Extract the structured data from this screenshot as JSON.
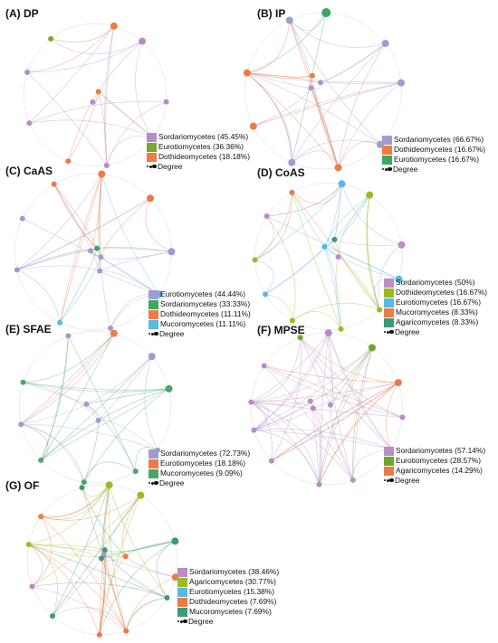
{
  "colors": {
    "Sordariomycetes": "#a08cc8",
    "Eurotiomycetes_A": "#7aa82a",
    "Eurotiomycetes": "#4aa86a",
    "Dothideomycetes": "#ee7b45",
    "Mucoromycetes": "#58b8e6",
    "Agaricomycetes": "#3c9a7a",
    "AgaricomycetesG": "#9cbc1c"
  },
  "degree_label": "Degree",
  "panels": [
    {
      "title": "(A) DP",
      "legend": [
        {
          "label": "Sordariomycetes (45.45%)",
          "color": "#b88cc8"
        },
        {
          "label": "Eurotiomycetes (36.36%)",
          "color": "#7aa82a"
        },
        {
          "label": "Dothideomycetes (18.18%)",
          "color": "#ee7b45"
        }
      ]
    },
    {
      "title": "(B) IP",
      "legend": [
        {
          "label": "Sordariomycetes (66.67%)",
          "color": "#a09cd0"
        },
        {
          "label": "Dothideomycetes (16.67%)",
          "color": "#ee7b45"
        },
        {
          "label": "Eurotiomycetes (16.67%)",
          "color": "#3aa860"
        }
      ]
    },
    {
      "title": "(C) CaAS",
      "legend": [
        {
          "label": "Eurotiomycetes (44.44%)",
          "color": "#a09cd0"
        },
        {
          "label": "Sordariomycetes (33.33%)",
          "color": "#3aa860"
        },
        {
          "label": "Dothideomycetes (11.11%)",
          "color": "#ee7b45"
        },
        {
          "label": "Mucoromycetes (11.11%)",
          "color": "#58b8e6"
        }
      ]
    },
    {
      "title": "(D) CoAS",
      "legend": [
        {
          "label": "Sordariomycetes (50%)",
          "color": "#c08cc8"
        },
        {
          "label": "Dothideomycetes (16.67%)",
          "color": "#9cbc1c"
        },
        {
          "label": "Eurotiomycetes (16.67%)",
          "color": "#58b8e6"
        },
        {
          "label": "Mucoromycetes (8.33%)",
          "color": "#ee7b45"
        },
        {
          "label": "Agaricomycetes (8.33%)",
          "color": "#3c9a7a"
        }
      ]
    },
    {
      "title": "(E) SFAE",
      "legend": [
        {
          "label": "Sordariomycetes (72.73%)",
          "color": "#a09cd0"
        },
        {
          "label": "Eurotiomycetes (18.18%)",
          "color": "#ee7b45"
        },
        {
          "label": "Mucoromycetes (9.09%)",
          "color": "#4aa86a"
        }
      ]
    },
    {
      "title": "(F) MPSE",
      "legend": [
        {
          "label": "Sordariomycetes (57.14%)",
          "color": "#b88cc8"
        },
        {
          "label": "Eurotiomycetes (28.57%)",
          "color": "#6aa82a"
        },
        {
          "label": "Agaricomycetes (14.29%)",
          "color": "#ee7b45"
        }
      ]
    },
    {
      "title": "(G) OF",
      "legend": [
        {
          "label": "Sordariomycetes (38.46%)",
          "color": "#b88cc8"
        },
        {
          "label": "Agaricomycetes (30.77%)",
          "color": "#9cbc1c"
        },
        {
          "label": "Eurotiomycetes (15.38%)",
          "color": "#58b8e6"
        },
        {
          "label": "Dothideomycetes (7.69%)",
          "color": "#ee7b45"
        },
        {
          "label": "Mucoromycetes (7.69%)",
          "color": "#3c9a7a"
        }
      ]
    }
  ]
}
